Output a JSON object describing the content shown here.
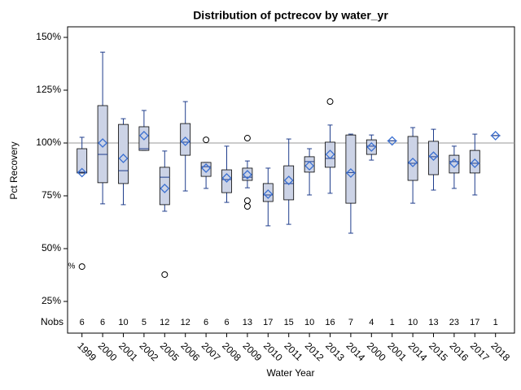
{
  "chart_data": {
    "type": "box",
    "title": "Distribution of pctrecov by water_yr",
    "xlabel": "Water Year",
    "ylabel": "Pct Recovery",
    "categories": [
      "1999",
      "2000",
      "2001",
      "2002",
      "2005",
      "2006",
      "2007",
      "2008",
      "2009",
      "2010",
      "2011",
      "2012",
      "2013",
      "2014",
      "2000",
      "2001",
      "2014",
      "2015",
      "2016",
      "2017",
      "2018"
    ],
    "boxes": [
      {
        "whisker_low": 85.8,
        "q1": 85.8,
        "median": 86.2,
        "q3": 97.3,
        "whisker_high": 102.7,
        "mean": 86,
        "outliers": [
          41.5
        ]
      },
      {
        "whisker_low": 71.2,
        "q1": 81.2,
        "median": 94.6,
        "q3": 117.7,
        "whisker_high": 143,
        "mean": 100,
        "outliers": []
      },
      {
        "whisker_low": 70.8,
        "q1": 80.8,
        "median": 86.9,
        "q3": 108.8,
        "whisker_high": 111.5,
        "mean": 92.7,
        "outliers": []
      },
      {
        "whisker_low": 96.5,
        "q1": 96.5,
        "median": 97.3,
        "q3": 107.7,
        "whisker_high": 115.4,
        "mean": 103.5,
        "outliers": []
      },
      {
        "whisker_low": 67.7,
        "q1": 70.8,
        "median": 83.8,
        "q3": 88.5,
        "whisker_high": 96.2,
        "mean": 78.5,
        "outliers": [
          37.7
        ]
      },
      {
        "whisker_low": 77.3,
        "q1": 94.2,
        "median": 100.4,
        "q3": 109.2,
        "whisker_high": 119.6,
        "mean": 100.8,
        "outliers": []
      },
      {
        "whisker_low": 78.5,
        "q1": 84.2,
        "median": 88.8,
        "q3": 90.8,
        "whisker_high": 90.8,
        "mean": 88.1,
        "outliers": [
          101.5
        ]
      },
      {
        "whisker_low": 71.9,
        "q1": 76.5,
        "median": 82.7,
        "q3": 87.3,
        "whisker_high": 98.5,
        "mean": 83.5,
        "outliers": []
      },
      {
        "whisker_low": 78.8,
        "q1": 82.3,
        "median": 83.8,
        "q3": 88.1,
        "whisker_high": 91.5,
        "mean": 85,
        "outliers": [
          102.3,
          72.7,
          70
        ]
      },
      {
        "whisker_low": 60.8,
        "q1": 72.3,
        "median": 75.4,
        "q3": 80.8,
        "whisker_high": 88.1,
        "mean": 75.8,
        "outliers": []
      },
      {
        "whisker_low": 61.5,
        "q1": 73.1,
        "median": 80.8,
        "q3": 89.2,
        "whisker_high": 101.9,
        "mean": 82.3,
        "outliers": []
      },
      {
        "whisker_low": 75.4,
        "q1": 86.2,
        "median": 91.2,
        "q3": 93.5,
        "whisker_high": 97.3,
        "mean": 89.2,
        "outliers": []
      },
      {
        "whisker_low": 76.2,
        "q1": 88.5,
        "median": 92.7,
        "q3": 100.4,
        "whisker_high": 108.5,
        "mean": 94.6,
        "outliers": [
          119.6
        ]
      },
      {
        "whisker_low": 57.3,
        "q1": 71.5,
        "median": 86,
        "q3": 103.8,
        "whisker_high": 104.2,
        "mean": 85.8,
        "outliers": []
      },
      {
        "whisker_low": 91.9,
        "q1": 94.6,
        "median": 98.5,
        "q3": 101.5,
        "whisker_high": 103.8,
        "mean": 98.1,
        "outliers": []
      },
      {
        "whisker_low": 101,
        "q1": 101,
        "median": 101,
        "q3": 101,
        "whisker_high": 101,
        "mean": 101,
        "outliers": []
      },
      {
        "whisker_low": 71.5,
        "q1": 82.3,
        "median": 90.4,
        "q3": 103.1,
        "whisker_high": 107.3,
        "mean": 90.8,
        "outliers": []
      },
      {
        "whisker_low": 77.7,
        "q1": 85,
        "median": 93.5,
        "q3": 100.8,
        "whisker_high": 106.5,
        "mean": 93.8,
        "outliers": []
      },
      {
        "whisker_low": 78.5,
        "q1": 85.8,
        "median": 91.2,
        "q3": 94.2,
        "whisker_high": 98.5,
        "mean": 90.4,
        "outliers": []
      },
      {
        "whisker_low": 75.4,
        "q1": 85.8,
        "median": 90.4,
        "q3": 96.5,
        "whisker_high": 104.2,
        "mean": 90.4,
        "outliers": []
      },
      {
        "whisker_low": 103.5,
        "q1": 103.5,
        "median": 103.5,
        "q3": 103.5,
        "whisker_high": 103.5,
        "mean": 103.5,
        "outliers": []
      }
    ],
    "nobs_label": "Nobs",
    "nobs": [
      6,
      6,
      10,
      5,
      12,
      12,
      6,
      6,
      13,
      17,
      15,
      10,
      16,
      7,
      4,
      1,
      10,
      13,
      23,
      17,
      1
    ],
    "annotation": "%",
    "annotation_value": 41.5,
    "reference_line": 100,
    "box_color": "#ccd3e6",
    "line_color": "#1f3d8c",
    "mean_color": "#3a6fd0",
    "outlier_color": "#000000",
    "ylim": [
      10,
      155
    ],
    "yticks": [
      {
        "value": 25,
        "label": "25%"
      },
      {
        "value": 50,
        "label": "50%"
      },
      {
        "value": 75,
        "label": "75%"
      },
      {
        "value": 100,
        "label": "100%"
      },
      {
        "value": 125,
        "label": "125%"
      },
      {
        "value": 150,
        "label": "150%"
      }
    ]
  }
}
